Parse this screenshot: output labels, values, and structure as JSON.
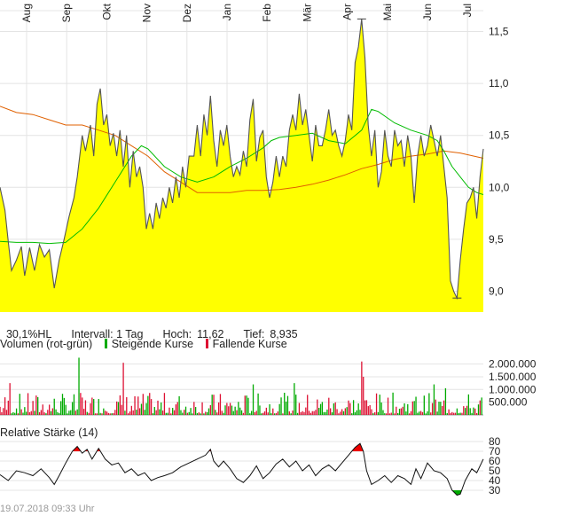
{
  "info_bar": {
    "range": "30,1%HL",
    "interval_label": "Intervall: 1 Tag",
    "high_label": "Hoch:",
    "high_value": "11,62",
    "low_label": "Tief:",
    "low_value": "8,935"
  },
  "volume_panel": {
    "title": "Volumen (rot-grün)",
    "legend_up": "Steigende Kurse",
    "legend_down": "Fallende Kurse",
    "up_color": "#00aa00",
    "down_color": "#dd1133"
  },
  "rsi_panel": {
    "title": "Relative Stärke (14)"
  },
  "timestamp": "19.07.2018 09:33 Uhr",
  "colors": {
    "area_fill": "#ffff00",
    "price_line": "#555555",
    "ma_orange": "#e06000",
    "ma_green": "#00bb00",
    "grid": "#e4e4e4",
    "rsi_overbought": "#ee0000",
    "rsi_oversold": "#00aa00"
  },
  "chart_data": [
    {
      "type": "area",
      "panel": "price",
      "x_labels": [
        "Aug",
        "Sep",
        "Okt",
        "Nov",
        "Dez",
        "Jan",
        "Feb",
        "Mär",
        "Apr",
        "Mai",
        "Jun",
        "Jul"
      ],
      "ylim": [
        8.8,
        11.7
      ],
      "yticks": [
        9.0,
        9.5,
        10.0,
        10.5,
        11.0,
        11.5
      ],
      "ytick_labels": [
        "9,0",
        "9,5",
        "10,0",
        "10,5",
        "11,0",
        "11,5"
      ],
      "grid": true,
      "price": [
        [
          0.0,
          10.0
        ],
        [
          0.3,
          9.78
        ],
        [
          0.5,
          9.48
        ],
        [
          0.7,
          9.2
        ],
        [
          1.0,
          9.3
        ],
        [
          1.3,
          9.43
        ],
        [
          1.5,
          9.15
        ],
        [
          1.8,
          9.42
        ],
        [
          2.1,
          9.2
        ],
        [
          2.4,
          9.45
        ],
        [
          2.7,
          9.33
        ],
        [
          3.0,
          9.4
        ],
        [
          3.3,
          9.03
        ],
        [
          3.6,
          9.3
        ],
        [
          3.9,
          9.5
        ],
        [
          4.2,
          9.72
        ],
        [
          4.5,
          9.9
        ],
        [
          4.7,
          10.1
        ],
        [
          5.0,
          10.5
        ],
        [
          5.2,
          10.35
        ],
        [
          5.5,
          10.6
        ],
        [
          5.7,
          10.3
        ],
        [
          5.9,
          10.8
        ],
        [
          6.1,
          10.95
        ],
        [
          6.3,
          10.6
        ],
        [
          6.5,
          10.7
        ],
        [
          6.7,
          10.4
        ],
        [
          6.9,
          10.52
        ],
        [
          7.1,
          10.3
        ],
        [
          7.3,
          10.55
        ],
        [
          7.5,
          10.2
        ],
        [
          7.7,
          10.5
        ],
        [
          7.9,
          10.0
        ],
        [
          8.1,
          10.35
        ],
        [
          8.3,
          10.1
        ],
        [
          8.5,
          10.2
        ],
        [
          8.7,
          10.0
        ],
        [
          8.9,
          9.6
        ],
        [
          9.1,
          9.75
        ],
        [
          9.3,
          9.6
        ],
        [
          9.5,
          9.85
        ],
        [
          9.7,
          9.7
        ],
        [
          9.9,
          9.9
        ],
        [
          10.1,
          9.8
        ],
        [
          10.3,
          10.0
        ],
        [
          10.5,
          9.85
        ],
        [
          10.7,
          10.1
        ],
        [
          10.9,
          9.9
        ],
        [
          11.1,
          10.2
        ],
        [
          11.3,
          10.0
        ],
        [
          11.5,
          10.3
        ],
        [
          11.8,
          10.3
        ],
        [
          12.0,
          10.6
        ],
        [
          12.2,
          10.3
        ],
        [
          12.4,
          10.7
        ],
        [
          12.6,
          10.5
        ],
        [
          12.8,
          10.88
        ],
        [
          13.0,
          10.45
        ],
        [
          13.2,
          10.2
        ],
        [
          13.4,
          10.55
        ],
        [
          13.6,
          10.4
        ],
        [
          13.8,
          10.6
        ],
        [
          14.0,
          10.3
        ],
        [
          14.2,
          10.1
        ],
        [
          14.4,
          10.2
        ],
        [
          14.6,
          10.12
        ],
        [
          14.8,
          10.35
        ],
        [
          15.0,
          10.2
        ],
        [
          15.2,
          10.65
        ],
        [
          15.4,
          10.85
        ],
        [
          15.6,
          10.25
        ],
        [
          15.8,
          10.48
        ],
        [
          16.0,
          10.55
        ],
        [
          16.2,
          10.1
        ],
        [
          16.4,
          9.9
        ],
        [
          16.6,
          10.05
        ],
        [
          16.8,
          10.3
        ],
        [
          17.0,
          10.1
        ],
        [
          17.2,
          10.3
        ],
        [
          17.4,
          10.2
        ],
        [
          17.6,
          10.55
        ],
        [
          17.8,
          10.7
        ],
        [
          18.0,
          10.55
        ],
        [
          18.2,
          10.9
        ],
        [
          18.4,
          10.6
        ],
        [
          18.6,
          10.75
        ],
        [
          18.8,
          10.5
        ],
        [
          19.0,
          10.25
        ],
        [
          19.2,
          10.6
        ],
        [
          19.4,
          10.4
        ],
        [
          19.6,
          10.4
        ],
        [
          19.8,
          10.55
        ],
        [
          20.0,
          10.75
        ],
        [
          20.2,
          10.5
        ],
        [
          20.4,
          10.55
        ],
        [
          20.6,
          10.4
        ],
        [
          20.8,
          10.3
        ],
        [
          21.0,
          10.45
        ],
        [
          21.2,
          10.7
        ],
        [
          21.4,
          10.55
        ],
        [
          21.6,
          11.2
        ],
        [
          21.8,
          11.35
        ],
        [
          22.0,
          11.62
        ],
        [
          22.2,
          11.25
        ],
        [
          22.4,
          10.6
        ],
        [
          22.6,
          10.3
        ],
        [
          22.8,
          10.55
        ],
        [
          23.0,
          10.0
        ],
        [
          23.2,
          10.15
        ],
        [
          23.4,
          10.55
        ],
        [
          23.6,
          10.3
        ],
        [
          23.8,
          10.2
        ],
        [
          24.0,
          10.55
        ],
        [
          24.2,
          10.4
        ],
        [
          24.4,
          10.45
        ],
        [
          24.6,
          10.2
        ],
        [
          24.8,
          10.5
        ],
        [
          25.0,
          10.3
        ],
        [
          25.2,
          9.85
        ],
        [
          25.4,
          10.3
        ],
        [
          25.6,
          10.5
        ],
        [
          25.8,
          10.3
        ],
        [
          26.0,
          10.4
        ],
        [
          26.2,
          10.6
        ],
        [
          26.4,
          10.45
        ],
        [
          26.6,
          10.3
        ],
        [
          26.8,
          10.5
        ],
        [
          27.0,
          10.2
        ],
        [
          27.2,
          9.9
        ],
        [
          27.4,
          9.1
        ],
        [
          27.6,
          9.0
        ],
        [
          27.8,
          8.935
        ],
        [
          28.0,
          9.3
        ],
        [
          28.2,
          9.6
        ],
        [
          28.4,
          9.85
        ],
        [
          28.6,
          9.9
        ],
        [
          28.8,
          10.0
        ],
        [
          29.0,
          9.7
        ],
        [
          29.2,
          10.1
        ],
        [
          29.4,
          10.37
        ]
      ],
      "ma_long": [
        [
          0.0,
          10.78
        ],
        [
          1.0,
          10.72
        ],
        [
          2.0,
          10.7
        ],
        [
          3.0,
          10.65
        ],
        [
          4.0,
          10.6
        ],
        [
          5.0,
          10.6
        ],
        [
          6.0,
          10.55
        ],
        [
          7.0,
          10.5
        ],
        [
          8.0,
          10.4
        ],
        [
          9.0,
          10.3
        ],
        [
          10.0,
          10.15
        ],
        [
          11.0,
          10.05
        ],
        [
          12.0,
          9.95
        ],
        [
          13.0,
          9.95
        ],
        [
          14.0,
          9.95
        ],
        [
          15.0,
          9.97
        ],
        [
          16.0,
          9.97
        ],
        [
          17.0,
          9.98
        ],
        [
          18.0,
          10.0
        ],
        [
          19.0,
          10.03
        ],
        [
          20.0,
          10.07
        ],
        [
          21.0,
          10.12
        ],
        [
          22.0,
          10.18
        ],
        [
          23.0,
          10.22
        ],
        [
          24.0,
          10.27
        ],
        [
          25.0,
          10.3
        ],
        [
          26.0,
          10.32
        ],
        [
          27.0,
          10.35
        ],
        [
          28.0,
          10.33
        ],
        [
          29.4,
          10.28
        ]
      ],
      "ma_short": [
        [
          0.0,
          9.48
        ],
        [
          1.0,
          9.47
        ],
        [
          2.0,
          9.47
        ],
        [
          3.0,
          9.46
        ],
        [
          4.0,
          9.47
        ],
        [
          5.0,
          9.6
        ],
        [
          6.0,
          9.8
        ],
        [
          7.0,
          10.05
        ],
        [
          8.0,
          10.3
        ],
        [
          8.6,
          10.4
        ],
        [
          9.0,
          10.37
        ],
        [
          10.0,
          10.2
        ],
        [
          11.0,
          10.1
        ],
        [
          12.0,
          10.05
        ],
        [
          13.0,
          10.1
        ],
        [
          14.0,
          10.2
        ],
        [
          15.0,
          10.28
        ],
        [
          16.0,
          10.38
        ],
        [
          16.5,
          10.45
        ],
        [
          17.0,
          10.48
        ],
        [
          18.0,
          10.5
        ],
        [
          19.0,
          10.52
        ],
        [
          20.0,
          10.45
        ],
        [
          21.0,
          10.42
        ],
        [
          22.0,
          10.55
        ],
        [
          22.6,
          10.75
        ],
        [
          23.0,
          10.73
        ],
        [
          24.0,
          10.62
        ],
        [
          25.0,
          10.55
        ],
        [
          26.0,
          10.5
        ],
        [
          26.6,
          10.45
        ],
        [
          27.0,
          10.35
        ],
        [
          27.5,
          10.2
        ],
        [
          28.0,
          10.1
        ],
        [
          28.5,
          10.0
        ],
        [
          29.0,
          9.95
        ],
        [
          29.4,
          9.93
        ]
      ]
    },
    {
      "type": "bar",
      "panel": "volume",
      "ylim": [
        0,
        2300000
      ],
      "yticks": [
        500000,
        1000000,
        1500000,
        2000000
      ],
      "ytick_labels": [
        "500.000",
        "1.000.000",
        "1.500.000",
        "2.000.000"
      ],
      "series": [
        {
          "name": "Steigende Kurse",
          "color": "#00aa00"
        },
        {
          "name": "Fallende Kurse",
          "color": "#dd1133"
        }
      ],
      "highlights": [
        {
          "x": 4.8,
          "value": 2250000,
          "dir": "up"
        },
        {
          "x": 7.5,
          "value": 2050000,
          "dir": "down"
        },
        {
          "x": 22.0,
          "value": 2100000,
          "dir": "down"
        },
        {
          "x": 22.1,
          "value": 1500000,
          "dir": "down"
        },
        {
          "x": 0.6,
          "value": 1250000,
          "dir": "down"
        },
        {
          "x": 15.4,
          "value": 1200000,
          "dir": "up"
        },
        {
          "x": 17.9,
          "value": 1250000,
          "dir": "up"
        },
        {
          "x": 26.4,
          "value": 1200000,
          "dir": "up"
        },
        {
          "x": 27.1,
          "value": 1050000,
          "dir": "up"
        }
      ]
    },
    {
      "type": "line",
      "panel": "rsi",
      "ylim": [
        20,
        80
      ],
      "yticks": [
        30,
        40,
        50,
        60,
        70,
        80
      ],
      "ytick_labels": [
        "30",
        "40",
        "50",
        "60",
        "70",
        "80"
      ],
      "overbought": 70,
      "oversold": 30,
      "values": [
        [
          0.0,
          46
        ],
        [
          0.5,
          40
        ],
        [
          1.0,
          50
        ],
        [
          1.5,
          48
        ],
        [
          2.0,
          45
        ],
        [
          2.5,
          52
        ],
        [
          3.0,
          43
        ],
        [
          3.3,
          36
        ],
        [
          3.6,
          45
        ],
        [
          4.0,
          58
        ],
        [
          4.4,
          70
        ],
        [
          4.7,
          75
        ],
        [
          5.0,
          68
        ],
        [
          5.3,
          72
        ],
        [
          5.6,
          62
        ],
        [
          6.0,
          73
        ],
        [
          6.4,
          62
        ],
        [
          6.8,
          56
        ],
        [
          7.2,
          58
        ],
        [
          7.6,
          48
        ],
        [
          8.0,
          52
        ],
        [
          8.4,
          45
        ],
        [
          8.8,
          48
        ],
        [
          9.2,
          40
        ],
        [
          9.6,
          43
        ],
        [
          10.0,
          45
        ],
        [
          10.5,
          48
        ],
        [
          11.0,
          54
        ],
        [
          11.5,
          58
        ],
        [
          12.0,
          62
        ],
        [
          12.5,
          66
        ],
        [
          12.8,
          72
        ],
        [
          13.0,
          60
        ],
        [
          13.3,
          54
        ],
        [
          13.6,
          60
        ],
        [
          14.0,
          52
        ],
        [
          14.4,
          42
        ],
        [
          14.8,
          38
        ],
        [
          15.2,
          45
        ],
        [
          15.6,
          55
        ],
        [
          16.0,
          42
        ],
        [
          16.4,
          48
        ],
        [
          16.8,
          57
        ],
        [
          17.2,
          62
        ],
        [
          17.6,
          54
        ],
        [
          18.0,
          60
        ],
        [
          18.4,
          50
        ],
        [
          18.8,
          56
        ],
        [
          19.2,
          45
        ],
        [
          19.6,
          52
        ],
        [
          20.0,
          56
        ],
        [
          20.4,
          50
        ],
        [
          20.8,
          58
        ],
        [
          21.2,
          66
        ],
        [
          21.6,
          74
        ],
        [
          21.9,
          78
        ],
        [
          22.1,
          70
        ],
        [
          22.3,
          50
        ],
        [
          22.6,
          36
        ],
        [
          23.0,
          40
        ],
        [
          23.4,
          45
        ],
        [
          23.8,
          38
        ],
        [
          24.2,
          45
        ],
        [
          24.6,
          42
        ],
        [
          25.0,
          36
        ],
        [
          25.3,
          52
        ],
        [
          25.6,
          42
        ],
        [
          26.0,
          58
        ],
        [
          26.4,
          50
        ],
        [
          26.8,
          48
        ],
        [
          27.2,
          42
        ],
        [
          27.5,
          30
        ],
        [
          27.8,
          25
        ],
        [
          28.0,
          26
        ],
        [
          28.3,
          40
        ],
        [
          28.7,
          52
        ],
        [
          29.0,
          48
        ],
        [
          29.4,
          62
        ]
      ]
    }
  ]
}
